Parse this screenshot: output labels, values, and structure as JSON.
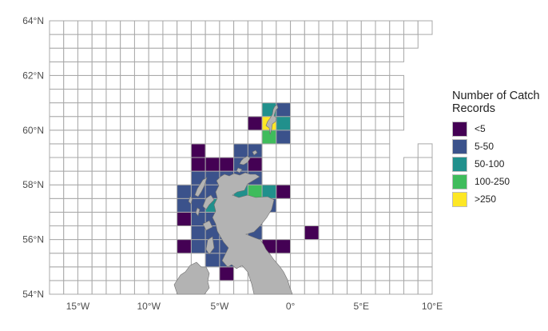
{
  "chart_data": {
    "type": "heatmap",
    "title": "",
    "xlabel": "",
    "ylabel": "",
    "x_ticks": [
      "15°W",
      "10°W",
      "5°W",
      "0°",
      "5°E",
      "10°E"
    ],
    "x_tick_values": [
      -15,
      -10,
      -5,
      0,
      5,
      10
    ],
    "y_ticks": [
      "54°N",
      "56°N",
      "58°N",
      "60°N",
      "62°N",
      "64°N"
    ],
    "y_tick_values": [
      54,
      56,
      58,
      60,
      62,
      64
    ],
    "xlim": [
      -17,
      10
    ],
    "ylim": [
      54,
      64
    ],
    "cell_width_deg_lon": 1,
    "cell_height_deg_lat": 0.5,
    "legend": {
      "title": "Number of Catch Records",
      "position": "right",
      "classes": [
        {
          "label": "<5",
          "color": "#440154"
        },
        {
          "label": "5-50",
          "color": "#3b528b"
        },
        {
          "label": "50-100",
          "color": "#21908c"
        },
        {
          "label": "100-250",
          "color": "#3fbc5c"
        },
        {
          "label": ">250",
          "color": "#fde725"
        }
      ]
    },
    "cells": [
      {
        "lon": -2,
        "lat": 60.5,
        "class": "50-100"
      },
      {
        "lon": -1,
        "lat": 60.5,
        "class": "5-50"
      },
      {
        "lon": -3,
        "lat": 60.0,
        "class": "<5"
      },
      {
        "lon": -2,
        "lat": 60.0,
        "class": ">250"
      },
      {
        "lon": -1,
        "lat": 60.0,
        "class": "50-100"
      },
      {
        "lon": -2,
        "lat": 59.5,
        "class": "100-250"
      },
      {
        "lon": -1,
        "lat": 59.5,
        "class": "5-50"
      },
      {
        "lon": -7,
        "lat": 59.0,
        "class": "<5"
      },
      {
        "lon": -4,
        "lat": 59.0,
        "class": "5-50"
      },
      {
        "lon": -3,
        "lat": 59.0,
        "class": "5-50"
      },
      {
        "lon": -7,
        "lat": 58.5,
        "class": "<5"
      },
      {
        "lon": -6,
        "lat": 58.5,
        "class": "<5"
      },
      {
        "lon": -5,
        "lat": 58.5,
        "class": "<5"
      },
      {
        "lon": -4,
        "lat": 58.5,
        "class": "5-50"
      },
      {
        "lon": -3,
        "lat": 58.5,
        "class": "<5"
      },
      {
        "lon": -7,
        "lat": 58.0,
        "class": "5-50"
      },
      {
        "lon": -6,
        "lat": 58.0,
        "class": "5-50"
      },
      {
        "lon": -5,
        "lat": 58.0,
        "class": "5-50"
      },
      {
        "lon": -4,
        "lat": 58.0,
        "class": "5-50"
      },
      {
        "lon": -3,
        "lat": 58.0,
        "class": "5-50"
      },
      {
        "lon": -8,
        "lat": 57.5,
        "class": "5-50"
      },
      {
        "lon": -7,
        "lat": 57.5,
        "class": "5-50"
      },
      {
        "lon": -6,
        "lat": 57.5,
        "class": "5-50"
      },
      {
        "lon": -4,
        "lat": 57.5,
        "class": "50-100"
      },
      {
        "lon": -3,
        "lat": 57.5,
        "class": "100-250"
      },
      {
        "lon": -2,
        "lat": 57.5,
        "class": "50-100"
      },
      {
        "lon": -1,
        "lat": 57.5,
        "class": "<5"
      },
      {
        "lon": -8,
        "lat": 57.0,
        "class": "5-50"
      },
      {
        "lon": -7,
        "lat": 57.0,
        "class": "5-50"
      },
      {
        "lon": -6,
        "lat": 57.0,
        "class": "50-100"
      },
      {
        "lon": -2,
        "lat": 57.0,
        "class": "5-50"
      },
      {
        "lon": -8,
        "lat": 56.5,
        "class": "<5"
      },
      {
        "lon": -7,
        "lat": 56.5,
        "class": "5-50"
      },
      {
        "lon": -6,
        "lat": 56.5,
        "class": "5-50"
      },
      {
        "lon": -3,
        "lat": 56.5,
        "class": "5-50"
      },
      {
        "lon": -7,
        "lat": 56.0,
        "class": "5-50"
      },
      {
        "lon": -6,
        "lat": 56.0,
        "class": "5-50"
      },
      {
        "lon": -5,
        "lat": 56.0,
        "class": "5-50"
      },
      {
        "lon": -3,
        "lat": 56.0,
        "class": "5-50"
      },
      {
        "lon": 1,
        "lat": 56.0,
        "class": "<5"
      },
      {
        "lon": -8,
        "lat": 55.5,
        "class": "<5"
      },
      {
        "lon": -7,
        "lat": 55.5,
        "class": "5-50"
      },
      {
        "lon": -6,
        "lat": 55.5,
        "class": "5-50"
      },
      {
        "lon": -5,
        "lat": 55.5,
        "class": "5-50"
      },
      {
        "lon": -2,
        "lat": 55.5,
        "class": "<5"
      },
      {
        "lon": -1,
        "lat": 55.5,
        "class": "<5"
      },
      {
        "lon": -6,
        "lat": 55.0,
        "class": "5-50"
      },
      {
        "lon": -5,
        "lat": 55.0,
        "class": "5-50"
      },
      {
        "lon": -5,
        "lat": 54.5,
        "class": "<5"
      }
    ],
    "excluded_cells": [
      {
        "lon": 9,
        "lat": 63.0
      },
      {
        "lon": 8,
        "lat": 62.5
      },
      {
        "lon": 9,
        "lat": 62.5
      },
      {
        "lon": 8,
        "lat": 62.0
      },
      {
        "lon": 9,
        "lat": 62.0
      },
      {
        "lon": 7,
        "lat": 62.0
      },
      {
        "lon": 8,
        "lat": 61.5
      },
      {
        "lon": 9,
        "lat": 61.5
      },
      {
        "lon": 8,
        "lat": 61.0
      },
      {
        "lon": 9,
        "lat": 61.0
      },
      {
        "lon": 8,
        "lat": 60.5
      },
      {
        "lon": 9,
        "lat": 60.5
      },
      {
        "lon": 8,
        "lat": 60.0
      },
      {
        "lon": 9,
        "lat": 60.0
      },
      {
        "lon": 7,
        "lat": 59.5
      },
      {
        "lon": 8,
        "lat": 59.5
      },
      {
        "lon": 9,
        "lat": 59.5
      },
      {
        "lon": 7,
        "lat": 59.0
      },
      {
        "lon": 8,
        "lat": 59.0
      },
      {
        "lon": 7,
        "lat": 58.5
      }
    ],
    "land_color": "#b3b3b3",
    "grid_line_color": "#a8a8a8"
  }
}
